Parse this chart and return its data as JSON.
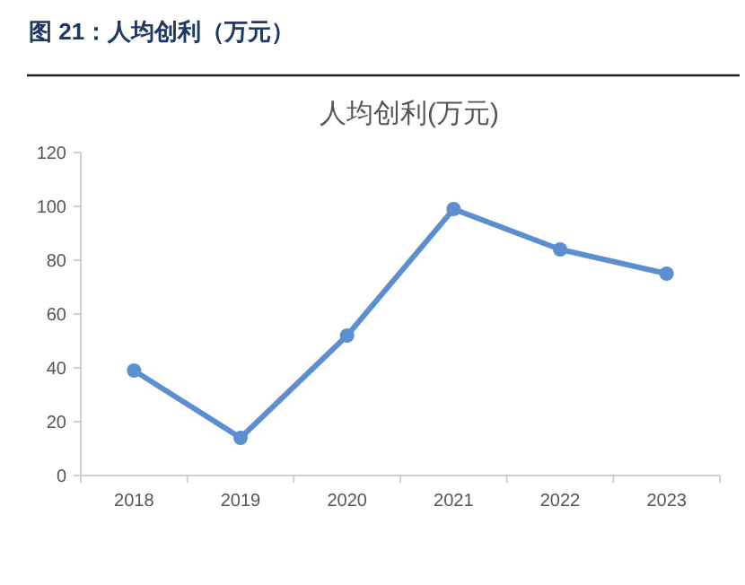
{
  "chart_data": {
    "type": "line",
    "title": "图 21：人均创利（万元）",
    "subtitle": "人均创利(万元)",
    "categories": [
      "2018",
      "2019",
      "2020",
      "2021",
      "2022",
      "2023"
    ],
    "series": [
      {
        "color": "#5b8fd0",
        "values": [
          39,
          14,
          52,
          99,
          84,
          75
        ]
      }
    ],
    "ylim": [
      0,
      120
    ],
    "yticks": [
      0,
      20,
      40,
      60,
      80,
      100,
      120
    ],
    "marker": "circle",
    "line_style": "solid",
    "grid": false
  }
}
